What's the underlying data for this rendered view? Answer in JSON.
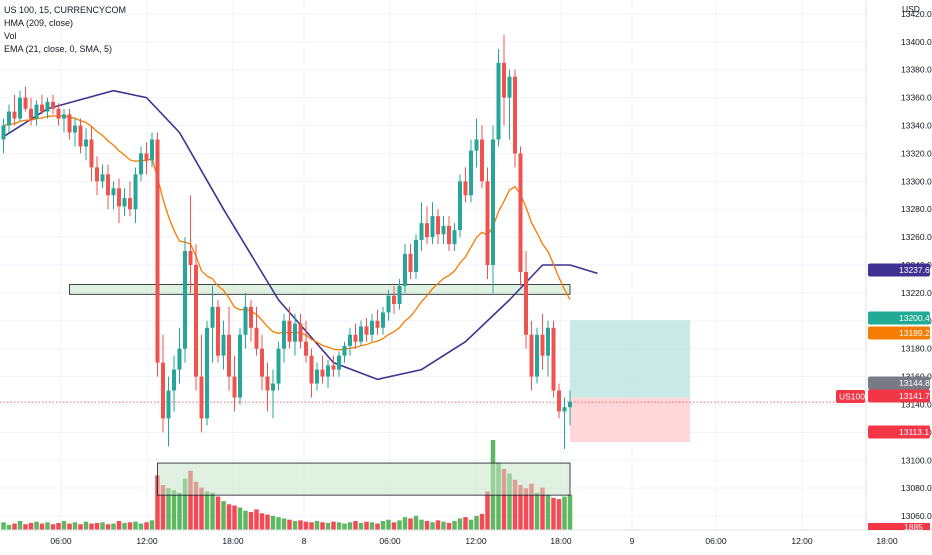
{
  "legend": {
    "symbol_line": "US 100, 15, CURRENCYCOM",
    "hma_line": "HMA (209, close)",
    "vol_line": "Vol",
    "ema_line": "EMA (21, close, 0, SMA, 5)"
  },
  "currency_label": "USD",
  "chart_data": {
    "type": "candlestick",
    "title": "US 100, 15, CURRENCYCOM",
    "ylim": [
      13050,
      13430
    ],
    "y_ticks": [
      13060,
      13080,
      13100,
      13120,
      13140,
      13160,
      13180,
      13200,
      13220,
      13240,
      13260,
      13280,
      13300,
      13320,
      13340,
      13360,
      13380,
      13400,
      13420
    ],
    "x_ticks": [
      "06:00",
      "12:00",
      "18:00",
      "8",
      "06:00",
      "12:00",
      "18:00",
      "9",
      "06:00",
      "12:00",
      "18:00"
    ],
    "grid": true,
    "colors": {
      "up": "#26a69a",
      "up_volume": "#4caf50",
      "down": "#ef5350",
      "down_volume": "#f23645",
      "hma": "#3f3191",
      "ema": "#f57c00",
      "zone_fill": "#c8e6c9",
      "target_fill": "#b2dfdb",
      "stop_fill": "#ffcdd2"
    },
    "candles": [
      {
        "o": 13330,
        "h": 13345,
        "l": 13320,
        "c": 13340
      },
      {
        "o": 13340,
        "h": 13355,
        "l": 13335,
        "c": 13350
      },
      {
        "o": 13350,
        "h": 13362,
        "l": 13340,
        "c": 13345
      },
      {
        "o": 13345,
        "h": 13365,
        "l": 13343,
        "c": 13360
      },
      {
        "o": 13360,
        "h": 13368,
        "l": 13350,
        "c": 13352
      },
      {
        "o": 13352,
        "h": 13360,
        "l": 13340,
        "c": 13345
      },
      {
        "o": 13345,
        "h": 13358,
        "l": 13340,
        "c": 13355
      },
      {
        "o": 13355,
        "h": 13362,
        "l": 13348,
        "c": 13350
      },
      {
        "o": 13350,
        "h": 13360,
        "l": 13345,
        "c": 13357
      },
      {
        "o": 13357,
        "h": 13362,
        "l": 13348,
        "c": 13352
      },
      {
        "o": 13352,
        "h": 13356,
        "l": 13340,
        "c": 13345
      },
      {
        "o": 13345,
        "h": 13352,
        "l": 13335,
        "c": 13348
      },
      {
        "o": 13348,
        "h": 13352,
        "l": 13330,
        "c": 13335
      },
      {
        "o": 13335,
        "h": 13345,
        "l": 13325,
        "c": 13340
      },
      {
        "o": 13340,
        "h": 13345,
        "l": 13320,
        "c": 13325
      },
      {
        "o": 13325,
        "h": 13338,
        "l": 13315,
        "c": 13330
      },
      {
        "o": 13330,
        "h": 13340,
        "l": 13300,
        "c": 13310
      },
      {
        "o": 13310,
        "h": 13318,
        "l": 13290,
        "c": 13300
      },
      {
        "o": 13300,
        "h": 13312,
        "l": 13295,
        "c": 13305
      },
      {
        "o": 13305,
        "h": 13312,
        "l": 13280,
        "c": 13290
      },
      {
        "o": 13290,
        "h": 13300,
        "l": 13280,
        "c": 13295
      },
      {
        "o": 13295,
        "h": 13302,
        "l": 13270,
        "c": 13282
      },
      {
        "o": 13282,
        "h": 13295,
        "l": 13275,
        "c": 13288
      },
      {
        "o": 13288,
        "h": 13300,
        "l": 13275,
        "c": 13280
      },
      {
        "o": 13280,
        "h": 13310,
        "l": 13270,
        "c": 13305
      },
      {
        "o": 13305,
        "h": 13325,
        "l": 13300,
        "c": 13320
      },
      {
        "o": 13320,
        "h": 13328,
        "l": 13305,
        "c": 13315
      },
      {
        "o": 13315,
        "h": 13335,
        "l": 13310,
        "c": 13330
      },
      {
        "o": 13330,
        "h": 13335,
        "l": 13160,
        "c": 13170
      },
      {
        "o": 13170,
        "h": 13190,
        "l": 13120,
        "c": 13130
      },
      {
        "o": 13130,
        "h": 13160,
        "l": 13110,
        "c": 13150
      },
      {
        "o": 13150,
        "h": 13175,
        "l": 13135,
        "c": 13165
      },
      {
        "o": 13165,
        "h": 13195,
        "l": 13155,
        "c": 13180
      },
      {
        "o": 13180,
        "h": 13260,
        "l": 13170,
        "c": 13250
      },
      {
        "o": 13250,
        "h": 13290,
        "l": 13220,
        "c": 13240
      },
      {
        "o": 13240,
        "h": 13255,
        "l": 13150,
        "c": 13160
      },
      {
        "o": 13160,
        "h": 13190,
        "l": 13120,
        "c": 13130
      },
      {
        "o": 13130,
        "h": 13200,
        "l": 13125,
        "c": 13195
      },
      {
        "o": 13195,
        "h": 13225,
        "l": 13170,
        "c": 13210
      },
      {
        "o": 13210,
        "h": 13215,
        "l": 13170,
        "c": 13175
      },
      {
        "o": 13175,
        "h": 13200,
        "l": 13165,
        "c": 13190
      },
      {
        "o": 13190,
        "h": 13210,
        "l": 13150,
        "c": 13160
      },
      {
        "o": 13160,
        "h": 13175,
        "l": 13135,
        "c": 13145
      },
      {
        "o": 13145,
        "h": 13195,
        "l": 13140,
        "c": 13190
      },
      {
        "o": 13190,
        "h": 13220,
        "l": 13180,
        "c": 13210
      },
      {
        "o": 13210,
        "h": 13215,
        "l": 13185,
        "c": 13195
      },
      {
        "o": 13195,
        "h": 13210,
        "l": 13175,
        "c": 13180
      },
      {
        "o": 13180,
        "h": 13190,
        "l": 13150,
        "c": 13160
      },
      {
        "o": 13160,
        "h": 13170,
        "l": 13135,
        "c": 13150
      },
      {
        "o": 13150,
        "h": 13165,
        "l": 13130,
        "c": 13155
      },
      {
        "o": 13155,
        "h": 13185,
        "l": 13150,
        "c": 13180
      },
      {
        "o": 13180,
        "h": 13205,
        "l": 13170,
        "c": 13200
      },
      {
        "o": 13200,
        "h": 13210,
        "l": 13180,
        "c": 13185
      },
      {
        "o": 13185,
        "h": 13205,
        "l": 13175,
        "c": 13198
      },
      {
        "o": 13198,
        "h": 13205,
        "l": 13180,
        "c": 13185
      },
      {
        "o": 13185,
        "h": 13200,
        "l": 13170,
        "c": 13175
      },
      {
        "o": 13175,
        "h": 13180,
        "l": 13145,
        "c": 13155
      },
      {
        "o": 13155,
        "h": 13170,
        "l": 13150,
        "c": 13165
      },
      {
        "o": 13165,
        "h": 13175,
        "l": 13155,
        "c": 13160
      },
      {
        "o": 13160,
        "h": 13172,
        "l": 13152,
        "c": 13168
      },
      {
        "o": 13168,
        "h": 13175,
        "l": 13160,
        "c": 13165
      },
      {
        "o": 13165,
        "h": 13178,
        "l": 13160,
        "c": 13175
      },
      {
        "o": 13175,
        "h": 13185,
        "l": 13170,
        "c": 13182
      },
      {
        "o": 13182,
        "h": 13195,
        "l": 13175,
        "c": 13190
      },
      {
        "o": 13190,
        "h": 13198,
        "l": 13180,
        "c": 13185
      },
      {
        "o": 13185,
        "h": 13200,
        "l": 13182,
        "c": 13196
      },
      {
        "o": 13196,
        "h": 13202,
        "l": 13185,
        "c": 13190
      },
      {
        "o": 13190,
        "h": 13205,
        "l": 13185,
        "c": 13200
      },
      {
        "o": 13200,
        "h": 13208,
        "l": 13190,
        "c": 13195
      },
      {
        "o": 13195,
        "h": 13210,
        "l": 13190,
        "c": 13206
      },
      {
        "o": 13206,
        "h": 13222,
        "l": 13200,
        "c": 13218
      },
      {
        "o": 13218,
        "h": 13225,
        "l": 13205,
        "c": 13212
      },
      {
        "o": 13212,
        "h": 13230,
        "l": 13208,
        "c": 13225
      },
      {
        "o": 13225,
        "h": 13255,
        "l": 13220,
        "c": 13248
      },
      {
        "o": 13248,
        "h": 13255,
        "l": 13230,
        "c": 13235
      },
      {
        "o": 13235,
        "h": 13262,
        "l": 13230,
        "c": 13258
      },
      {
        "o": 13258,
        "h": 13285,
        "l": 13250,
        "c": 13270
      },
      {
        "o": 13270,
        "h": 13282,
        "l": 13255,
        "c": 13260
      },
      {
        "o": 13260,
        "h": 13285,
        "l": 13255,
        "c": 13275
      },
      {
        "o": 13275,
        "h": 13280,
        "l": 13255,
        "c": 13262
      },
      {
        "o": 13262,
        "h": 13275,
        "l": 13255,
        "c": 13268
      },
      {
        "o": 13268,
        "h": 13275,
        "l": 13250,
        "c": 13255
      },
      {
        "o": 13255,
        "h": 13270,
        "l": 13250,
        "c": 13265
      },
      {
        "o": 13265,
        "h": 13305,
        "l": 13260,
        "c": 13300
      },
      {
        "o": 13300,
        "h": 13310,
        "l": 13285,
        "c": 13290
      },
      {
        "o": 13290,
        "h": 13330,
        "l": 13285,
        "c": 13322
      },
      {
        "o": 13322,
        "h": 13345,
        "l": 13310,
        "c": 13330
      },
      {
        "o": 13330,
        "h": 13340,
        "l": 13295,
        "c": 13300
      },
      {
        "o": 13300,
        "h": 13310,
        "l": 13230,
        "c": 13240
      },
      {
        "o": 13240,
        "h": 13340,
        "l": 13220,
        "c": 13330
      },
      {
        "o": 13330,
        "h": 13395,
        "l": 13325,
        "c": 13385
      },
      {
        "o": 13385,
        "h": 13405,
        "l": 13340,
        "c": 13360
      },
      {
        "o": 13360,
        "h": 13380,
        "l": 13330,
        "c": 13375
      },
      {
        "o": 13375,
        "h": 13380,
        "l": 13310,
        "c": 13320
      },
      {
        "o": 13320,
        "h": 13325,
        "l": 13225,
        "c": 13235
      },
      {
        "o": 13235,
        "h": 13250,
        "l": 13180,
        "c": 13190
      },
      {
        "o": 13190,
        "h": 13200,
        "l": 13150,
        "c": 13160
      },
      {
        "o": 13160,
        "h": 13195,
        "l": 13155,
        "c": 13190
      },
      {
        "o": 13190,
        "h": 13205,
        "l": 13165,
        "c": 13175
      },
      {
        "o": 13175,
        "h": 13200,
        "l": 13160,
        "c": 13195
      },
      {
        "o": 13195,
        "h": 13200,
        "l": 13145,
        "c": 13150
      },
      {
        "o": 13150,
        "h": 13155,
        "l": 13130,
        "c": 13135
      },
      {
        "o": 13135,
        "h": 13145,
        "l": 13108,
        "c": 13138
      },
      {
        "o": 13138,
        "h": 13150,
        "l": 13125,
        "c": 13142
      }
    ],
    "volume": [
      12,
      8,
      10,
      14,
      9,
      11,
      13,
      10,
      12,
      9,
      11,
      14,
      10,
      12,
      9,
      13,
      10,
      11,
      12,
      9,
      10,
      14,
      11,
      12,
      13,
      10,
      12,
      15,
      85,
      70,
      65,
      62,
      58,
      80,
      92,
      75,
      66,
      60,
      58,
      52,
      45,
      40,
      38,
      35,
      30,
      28,
      32,
      26,
      24,
      22,
      20,
      18,
      16,
      14,
      15,
      13,
      12,
      14,
      12,
      11,
      13,
      12,
      10,
      12,
      14,
      11,
      13,
      12,
      10,
      14,
      16,
      12,
      15,
      20,
      18,
      22,
      16,
      14,
      12,
      15,
      13,
      11,
      14,
      18,
      20,
      16,
      22,
      25,
      60,
      140,
      105,
      95,
      88,
      78,
      70,
      65,
      72,
      58,
      66,
      54,
      50,
      48,
      52,
      55
    ],
    "hma": [],
    "ema": [],
    "zones": [
      {
        "y_top": 13226,
        "y_bottom": 13219,
        "x_start": 12,
        "x_end": 103
      },
      {
        "y_top": 13098,
        "y_bottom": 13075,
        "x_start": 28,
        "x_end": 103
      }
    ],
    "position": {
      "entry": 13144.8,
      "target": 13200.4,
      "stop": 13113.1,
      "x_start": 103,
      "x_end": 110
    },
    "price_badges": [
      {
        "value": "13237.6",
        "color": "#3f3191"
      },
      {
        "value": "13200.4",
        "color": "#22ab94"
      },
      {
        "value": "13189.2",
        "color": "#f57c00"
      },
      {
        "value": "13144.8",
        "color": "#787b86"
      },
      {
        "value": "13141.7",
        "color": "#f23645"
      },
      {
        "value": "13113.1",
        "color": "#f23645"
      }
    ],
    "symbol_tag": "US100",
    "last_value_cut": "1885"
  }
}
